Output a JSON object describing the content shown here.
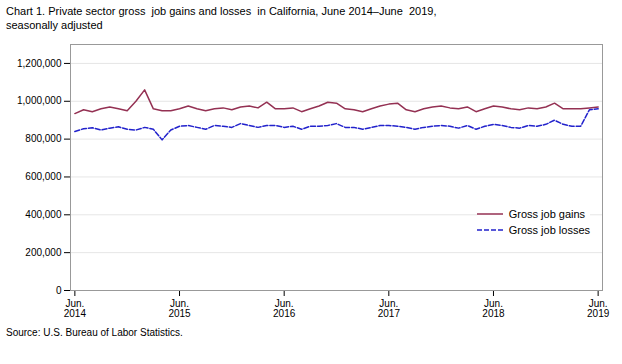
{
  "chart_data": {
    "type": "line",
    "title": "Chart 1. Private sector gross  job gains and losses  in California, June 2014–June  2019,",
    "subtitle": "seasonally adjusted",
    "caption": "Source: U.S. Bureau of Labor Statistics.",
    "categories": [
      "Jun.\n2014",
      null,
      null,
      null,
      null,
      null,
      null,
      null,
      null,
      null,
      null,
      null,
      "Jun.\n2015",
      null,
      null,
      null,
      null,
      null,
      null,
      null,
      null,
      null,
      null,
      null,
      "Jun.\n2016",
      null,
      null,
      null,
      null,
      null,
      null,
      null,
      null,
      null,
      null,
      null,
      "Jun.\n2017",
      null,
      null,
      null,
      null,
      null,
      null,
      null,
      null,
      null,
      null,
      null,
      "Jun.\n2018",
      null,
      null,
      null,
      null,
      null,
      null,
      null,
      null,
      null,
      null,
      null,
      "Jun.\n2019"
    ],
    "series": [
      {
        "name": "Gross job gains",
        "color": "#943153",
        "line_style": "solid",
        "values": [
          935000,
          955000,
          945000,
          960000,
          970000,
          960000,
          950000,
          1000000,
          1060000,
          960000,
          950000,
          950000,
          960000,
          975000,
          960000,
          950000,
          960000,
          965000,
          955000,
          970000,
          975000,
          965000,
          995000,
          960000,
          960000,
          965000,
          945000,
          960000,
          975000,
          995000,
          990000,
          960000,
          955000,
          945000,
          960000,
          975000,
          985000,
          990000,
          955000,
          945000,
          960000,
          970000,
          975000,
          965000,
          960000,
          970000,
          945000,
          960000,
          975000,
          970000,
          960000,
          955000,
          965000,
          960000,
          970000,
          990000,
          960000,
          960000,
          960000,
          965000,
          970000
        ]
      },
      {
        "name": "Gross job losses",
        "color": "#2222CC",
        "line_style": "dashed",
        "values": [
          840000,
          855000,
          860000,
          848000,
          858000,
          865000,
          852000,
          848000,
          862000,
          852000,
          796000,
          848000,
          868000,
          872000,
          862000,
          852000,
          872000,
          868000,
          862000,
          882000,
          872000,
          862000,
          872000,
          872000,
          862000,
          868000,
          852000,
          868000,
          868000,
          872000,
          882000,
          862000,
          862000,
          852000,
          862000,
          872000,
          872000,
          868000,
          862000,
          852000,
          862000,
          868000,
          872000,
          868000,
          858000,
          872000,
          852000,
          868000,
          878000,
          872000,
          862000,
          858000,
          872000,
          868000,
          878000,
          900000,
          878000,
          868000,
          868000,
          955000,
          960000
        ]
      }
    ],
    "ylim": [
      0,
      1300000
    ],
    "yticks": [
      0,
      {
        "value": 200000,
        "label": "200,000"
      },
      {
        "value": 400000,
        "label": "400,000"
      },
      {
        "value": 600000,
        "label": "600,000"
      },
      {
        "value": 800000,
        "label": "800,000"
      },
      {
        "value": 1000000,
        "label": "1,000,000"
      },
      {
        "value": 1200000,
        "label": "1,200,000"
      }
    ],
    "grid": true,
    "legend": "lower right"
  }
}
